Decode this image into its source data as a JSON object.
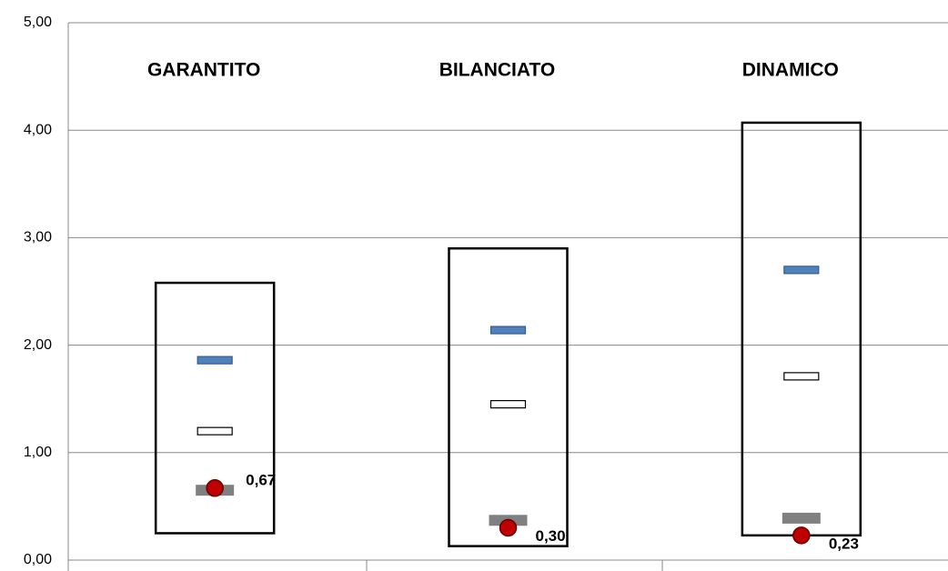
{
  "chart_data": {
    "type": "range-markers",
    "categories": [
      "GARANTITO",
      "BILANCIATO",
      "DINAMICO"
    ],
    "boxes": {
      "low": [
        0.25,
        0.13,
        0.23
      ],
      "high": [
        2.58,
        2.9,
        4.07
      ],
      "color": "#000000"
    },
    "series": [
      {
        "color": "#4f81bd",
        "marker": "dash",
        "values": [
          1.86,
          2.14,
          2.7
        ]
      },
      {
        "color": "#ffffff",
        "marker": "dash",
        "values": [
          1.2,
          1.45,
          1.71
        ]
      },
      {
        "color": "#808080",
        "marker": "bar",
        "values": [
          0.65,
          0.37,
          0.39
        ]
      },
      {
        "color": "#c00000",
        "marker": "circle",
        "values": [
          0.67,
          0.3,
          0.23
        ],
        "value_labels": [
          "0,67",
          "0,30",
          "0,23"
        ]
      }
    ],
    "ylim": [
      0,
      5
    ],
    "yticks": [
      {
        "value": 0,
        "label": "0,00"
      },
      {
        "value": 1,
        "label": "1,00"
      },
      {
        "value": 2,
        "label": "2,00"
      },
      {
        "value": 3,
        "label": "3,00"
      },
      {
        "value": 4,
        "label": "4,00"
      },
      {
        "value": 5,
        "label": "5,00"
      }
    ],
    "grid": true
  }
}
